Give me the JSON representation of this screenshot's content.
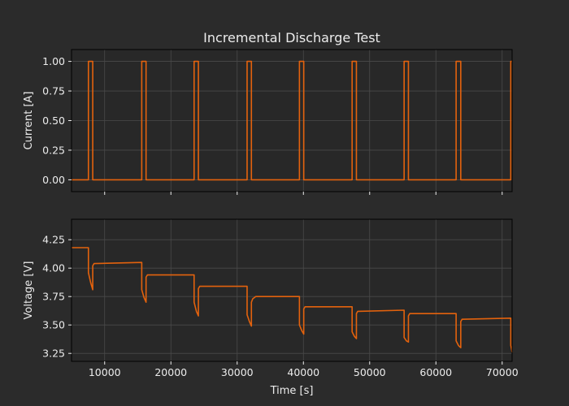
{
  "colors": {
    "background": "#2b2b2b",
    "axes_background": "#282828",
    "series": "#e3620d",
    "grid": "#4a4a4a",
    "text": "#ececec"
  },
  "chart_data": [
    {
      "type": "line",
      "title": "Incremental Discharge Test",
      "xlabel": "",
      "ylabel": "Current [A]",
      "xlim": [
        5000,
        71500
      ],
      "ylim": [
        -0.1,
        1.1
      ],
      "xticks": [
        10000,
        20000,
        30000,
        40000,
        50000,
        60000,
        70000
      ],
      "yticks": [
        0.0,
        0.25,
        0.5,
        0.75,
        1.0
      ],
      "ytick_labels": [
        "0.00",
        "0.25",
        "0.50",
        "0.75",
        "1.00"
      ],
      "grid": true,
      "series": [
        {
          "x": [
            5000,
            7550,
            7550,
            8200,
            8200,
            15600,
            15600,
            16250,
            16250,
            23500,
            23500,
            24150,
            24150,
            31500,
            31500,
            32150,
            32150,
            39400,
            39400,
            40050,
            40050,
            47350,
            47350,
            48000,
            48000,
            55200,
            55200,
            55850,
            55850,
            63050,
            63050,
            63750,
            63750,
            71300,
            71300,
            71500
          ],
          "y": [
            0,
            0,
            1,
            1,
            0,
            0,
            1,
            1,
            0,
            0,
            1,
            1,
            0,
            0,
            1,
            1,
            0,
            0,
            1,
            1,
            0,
            0,
            1,
            1,
            0,
            0,
            1,
            1,
            0,
            0,
            1,
            1,
            0,
            0,
            1,
            1
          ]
        }
      ]
    },
    {
      "type": "line",
      "title": "",
      "xlabel": "Time [s]",
      "ylabel": "Voltage [V]",
      "xlim": [
        5000,
        71500
      ],
      "ylim": [
        3.18,
        4.43
      ],
      "xticks": [
        10000,
        20000,
        30000,
        40000,
        50000,
        60000,
        70000
      ],
      "xtick_labels": [
        "10000",
        "20000",
        "30000",
        "40000",
        "50000",
        "60000",
        "70000"
      ],
      "yticks": [
        3.25,
        3.5,
        3.75,
        4.0,
        4.25
      ],
      "ytick_labels": [
        "3.25",
        "3.50",
        "3.75",
        "4.00",
        "4.25"
      ],
      "grid": true,
      "series": [
        {
          "x": [
            5000,
            7550,
            7550,
            7900,
            8200,
            8200,
            8400,
            15600,
            15600,
            15950,
            16250,
            16250,
            16450,
            23500,
            23500,
            23850,
            24150,
            24150,
            24350,
            31500,
            31500,
            31850,
            32150,
            32150,
            32350,
            32800,
            39400,
            39400,
            39750,
            40050,
            40050,
            40250,
            47350,
            47350,
            47700,
            48000,
            48000,
            48200,
            55200,
            55200,
            55550,
            55850,
            55850,
            56050,
            63050,
            63050,
            63400,
            63750,
            63750,
            63950,
            71300,
            71300,
            71500
          ],
          "y": [
            4.18,
            4.18,
            3.96,
            3.87,
            3.81,
            4.02,
            4.04,
            4.05,
            3.81,
            3.74,
            3.7,
            3.92,
            3.94,
            3.94,
            3.7,
            3.62,
            3.58,
            3.82,
            3.84,
            3.84,
            3.59,
            3.53,
            3.49,
            3.7,
            3.73,
            3.75,
            3.75,
            3.5,
            3.45,
            3.42,
            3.64,
            3.66,
            3.66,
            3.44,
            3.4,
            3.38,
            3.6,
            3.62,
            3.63,
            3.39,
            3.36,
            3.35,
            3.58,
            3.6,
            3.6,
            3.36,
            3.32,
            3.3,
            3.53,
            3.55,
            3.56,
            3.32,
            3.26
          ]
        }
      ]
    }
  ]
}
